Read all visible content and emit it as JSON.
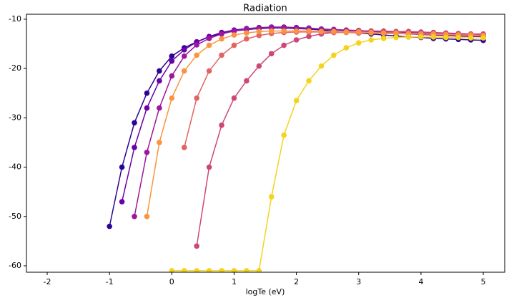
{
  "chart_data": {
    "type": "line",
    "title": "Radiation",
    "x_label": "logTe (eV)",
    "x": [
      -1.2,
      -1.0,
      -0.8,
      -0.6,
      -0.4,
      -0.2,
      0,
      0.2,
      0.4,
      0.6,
      0.8,
      1.0,
      1.2,
      1.4,
      1.6,
      1.8,
      2.0,
      2.2,
      2.4,
      2.6,
      2.8,
      3.0,
      3.2,
      3.4,
      3.6,
      3.8,
      4.0,
      4.2,
      4.4,
      4.6,
      4.8,
      5.0
    ],
    "series": [
      {
        "color": "#2c0594",
        "values": [
          null,
          -52,
          -40,
          -31,
          -25,
          -20.5,
          -17.5,
          -15.8,
          -14.6,
          -13.6,
          -12.9,
          -12.4,
          -12.1,
          -11.9,
          -11.8,
          -11.8,
          -11.9,
          -12.0,
          -12.2,
          -12.4,
          -12.6,
          -12.8,
          -13.0,
          -13.2,
          -13.4,
          -13.6,
          -13.7,
          -13.9,
          -14.0,
          -14.1,
          -14.2,
          -14.3
        ]
      },
      {
        "color": "#6a00a8",
        "values": [
          null,
          null,
          -47,
          -36,
          -28,
          -22.5,
          -18.5,
          -16.2,
          -14.6,
          -13.5,
          -12.7,
          -12.2,
          -11.9,
          -11.7,
          -11.6,
          -11.6,
          -11.7,
          -11.8,
          -12.0,
          -12.1,
          -12.3,
          -12.4,
          -12.6,
          -12.7,
          -12.8,
          -13.0,
          -13.1,
          -13.2,
          -13.3,
          -13.4,
          -13.5,
          -13.5
        ]
      },
      {
        "color": "#9c179e",
        "values": [
          null,
          null,
          null,
          -50,
          -37,
          -28,
          -21.5,
          -17.5,
          -15.2,
          -13.9,
          -13.0,
          -12.4,
          -12.0,
          -11.8,
          -11.7,
          -11.7,
          -11.8,
          -11.9,
          -12.0,
          -12.1,
          -12.2,
          -12.3,
          -12.4,
          -12.5,
          -12.6,
          -12.7,
          -12.8,
          -12.9,
          -13.0,
          -13.0,
          -13.1,
          -13.1
        ]
      },
      {
        "color": "#cc4778",
        "values": [
          null,
          null,
          null,
          null,
          null,
          null,
          null,
          null,
          -56,
          -40,
          -31.5,
          -26,
          -22.5,
          -19.5,
          -17,
          -15.3,
          -14.2,
          -13.5,
          -13.0,
          -12.7,
          -12.5,
          -12.4,
          -12.4,
          -12.4,
          -12.5,
          -12.5,
          -12.6,
          -12.7,
          -12.8,
          -12.9,
          -13.0,
          -13.0
        ]
      },
      {
        "color": "#e16462",
        "values": [
          null,
          null,
          null,
          null,
          null,
          null,
          null,
          -36,
          -26,
          -20.5,
          -17.3,
          -15.3,
          -14.0,
          -13.3,
          -12.9,
          -12.7,
          -12.6,
          -12.6,
          -12.6,
          -12.7,
          -12.7,
          -12.8,
          -12.8,
          -12.9,
          -12.9,
          -13.0,
          -13.0,
          -13.1,
          -13.1,
          -13.2,
          -13.2,
          -13.3
        ]
      },
      {
        "color": "#f89540",
        "values": [
          null,
          null,
          null,
          null,
          -50,
          -35,
          -26,
          -20.5,
          -17.3,
          -15.3,
          -14.0,
          -13.2,
          -12.8,
          -12.5,
          -12.4,
          -12.4,
          -12.4,
          -12.4,
          -12.5,
          -12.5,
          -12.6,
          -12.6,
          -12.7,
          -12.8,
          -12.8,
          -12.9,
          -13.0,
          -13.0,
          -13.1,
          -13.2,
          -13.2,
          -13.3
        ]
      },
      {
        "color": "#f5d31c",
        "values": [
          null,
          null,
          null,
          null,
          null,
          null,
          -61,
          -61,
          -61,
          -61,
          -61,
          -61,
          -61,
          -61,
          -46,
          -33.5,
          -26.5,
          -22.5,
          -19.5,
          -17.3,
          -15.8,
          -14.8,
          -14.2,
          -13.9,
          -13.7,
          -13.6,
          -13.6,
          -13.6,
          -13.7,
          -13.7,
          -13.8,
          -13.8
        ]
      }
    ],
    "xlim": [
      -2.333,
      5.344
    ],
    "ylim": [
      -61.3,
      -9
    ],
    "xticks": [
      -2,
      -1,
      0,
      1,
      2,
      3,
      4,
      5
    ],
    "yticks": [
      -60,
      -50,
      -40,
      -30,
      -20,
      -10
    ]
  }
}
